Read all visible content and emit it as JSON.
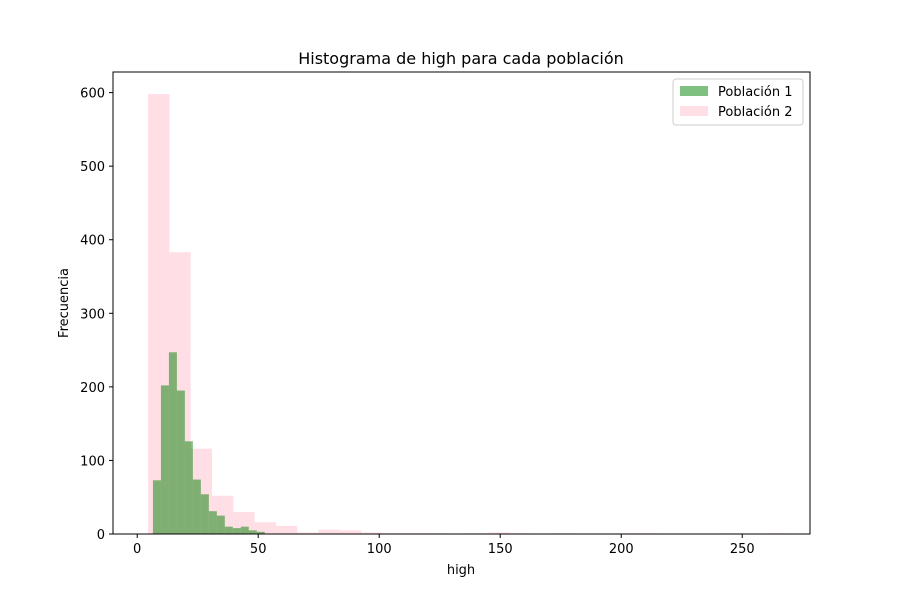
{
  "chart_data": {
    "type": "histogram",
    "title": "Histograma de high para cada población",
    "xlabel": "high",
    "ylabel": "Frecuencia",
    "xlim": [
      -10,
      278
    ],
    "ylim": [
      0,
      628
    ],
    "xticks": [
      0,
      50,
      100,
      150,
      200,
      250
    ],
    "yticks": [
      0,
      100,
      200,
      300,
      400,
      500,
      600
    ],
    "legend_position": "top-right",
    "series": [
      {
        "name": "Población 1",
        "color": "#008000",
        "opacity": 0.5,
        "bins": [
          {
            "x0": 6.5,
            "x1": 9.8,
            "count": 73
          },
          {
            "x0": 9.8,
            "x1": 13.1,
            "count": 202
          },
          {
            "x0": 13.1,
            "x1": 16.4,
            "count": 247
          },
          {
            "x0": 16.4,
            "x1": 19.7,
            "count": 195
          },
          {
            "x0": 19.7,
            "x1": 23.0,
            "count": 126
          },
          {
            "x0": 23.0,
            "x1": 26.3,
            "count": 74
          },
          {
            "x0": 26.3,
            "x1": 29.6,
            "count": 54
          },
          {
            "x0": 29.6,
            "x1": 32.9,
            "count": 31
          },
          {
            "x0": 32.9,
            "x1": 36.2,
            "count": 25
          },
          {
            "x0": 36.2,
            "x1": 39.5,
            "count": 10
          },
          {
            "x0": 39.5,
            "x1": 42.8,
            "count": 8
          },
          {
            "x0": 42.8,
            "x1": 46.1,
            "count": 10
          },
          {
            "x0": 46.1,
            "x1": 49.4,
            "count": 5
          },
          {
            "x0": 49.4,
            "x1": 52.7,
            "count": 3
          }
        ]
      },
      {
        "name": "Población 2",
        "color": "#ffc0cb",
        "opacity": 0.5,
        "bins": [
          {
            "x0": 4.5,
            "x1": 13.3,
            "count": 598
          },
          {
            "x0": 13.3,
            "x1": 22.1,
            "count": 383
          },
          {
            "x0": 22.1,
            "x1": 30.9,
            "count": 116
          },
          {
            "x0": 30.9,
            "x1": 39.7,
            "count": 52
          },
          {
            "x0": 39.7,
            "x1": 48.5,
            "count": 30
          },
          {
            "x0": 48.5,
            "x1": 57.3,
            "count": 16
          },
          {
            "x0": 57.3,
            "x1": 66.1,
            "count": 11
          },
          {
            "x0": 66.1,
            "x1": 74.9,
            "count": 2
          },
          {
            "x0": 74.9,
            "x1": 83.7,
            "count": 6
          },
          {
            "x0": 83.7,
            "x1": 92.5,
            "count": 5
          },
          {
            "x0": 92.5,
            "x1": 101.3,
            "count": 2
          },
          {
            "x0": 101.3,
            "x1": 110.1,
            "count": 1
          },
          {
            "x0": 110.1,
            "x1": 118.9,
            "count": 1
          },
          {
            "x0": 118.9,
            "x1": 127.7,
            "count": 1
          },
          {
            "x0": 127.7,
            "x1": 136.5,
            "count": 0
          },
          {
            "x0": 136.5,
            "x1": 145.3,
            "count": 1
          },
          {
            "x0": 145.3,
            "x1": 154.1,
            "count": 2
          },
          {
            "x0": 154.1,
            "x1": 162.9,
            "count": 1
          },
          {
            "x0": 162.9,
            "x1": 171.7,
            "count": 0
          },
          {
            "x0": 171.7,
            "x1": 180.5,
            "count": 1
          },
          {
            "x0": 180.5,
            "x1": 189.3,
            "count": 0
          },
          {
            "x0": 189.3,
            "x1": 198.1,
            "count": 0
          },
          {
            "x0": 198.1,
            "x1": 206.9,
            "count": 1
          },
          {
            "x0": 206.9,
            "x1": 215.7,
            "count": 1
          },
          {
            "x0": 215.7,
            "x1": 224.5,
            "count": 0
          },
          {
            "x0": 224.5,
            "x1": 233.3,
            "count": 0
          },
          {
            "x0": 233.3,
            "x1": 242.1,
            "count": 0
          },
          {
            "x0": 242.1,
            "x1": 250.9,
            "count": 1
          },
          {
            "x0": 250.9,
            "x1": 259.7,
            "count": 0
          },
          {
            "x0": 259.7,
            "x1": 268.5,
            "count": 1
          }
        ]
      }
    ]
  }
}
